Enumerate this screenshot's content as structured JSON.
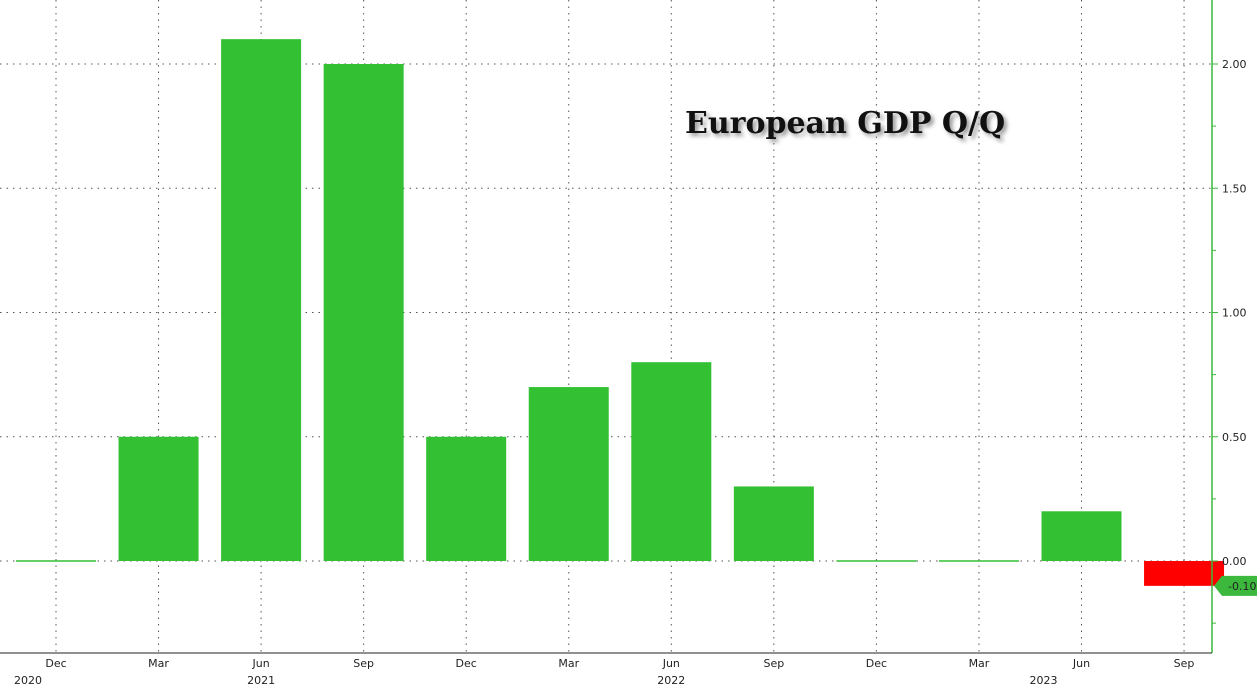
{
  "chart_data": {
    "type": "bar",
    "title": "European GDP Q/Q",
    "categories": [
      "Dec",
      "Mar",
      "Jun",
      "Sep",
      "Dec",
      "Mar",
      "Jun",
      "Sep",
      "Dec",
      "Mar",
      "Jun",
      "Sep"
    ],
    "years": [
      {
        "label": "2020",
        "index": 0
      },
      {
        "label": "2021",
        "index": 2
      },
      {
        "label": "2022",
        "index": 6
      },
      {
        "label": "2023",
        "index": 10
      }
    ],
    "values": [
      0.0,
      0.5,
      2.1,
      2.0,
      0.5,
      0.7,
      0.8,
      0.3,
      0.0,
      0.0,
      0.2,
      -0.1
    ],
    "yticks": [
      0.0,
      0.5,
      1.0,
      1.5,
      2.0
    ],
    "ytick_labels": [
      "0.00",
      "0.50",
      "1.00",
      "1.50",
      "2.00"
    ],
    "last_value_label": "-0.10",
    "ylim": [
      -0.37,
      2.26
    ],
    "xlabel": "",
    "ylabel": "",
    "grid": true,
    "colors": {
      "positive": "#33c033",
      "negative": "#ff0000",
      "axis": "#3cb83c",
      "last_badge": "#3cb83c"
    }
  }
}
